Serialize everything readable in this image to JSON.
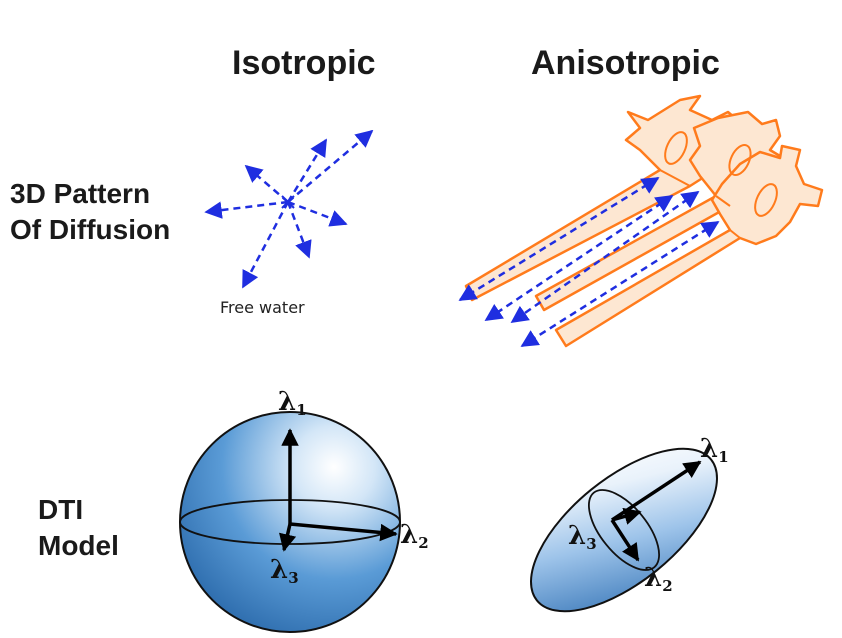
{
  "columns": {
    "isotropic": "Isotropic",
    "anisotropic": "Anisotropic"
  },
  "rows": {
    "pattern_line1": "3D Pattern",
    "pattern_line2": "Of Diffusion",
    "model_line1": "DTI",
    "model_line2": "Model"
  },
  "isotropic": {
    "caption": "Free water"
  },
  "sphere_axes": {
    "l1": "λ",
    "l1_sub": "1",
    "l2": "λ",
    "l2_sub": "2",
    "l3": "λ",
    "l3_sub": "3"
  },
  "ellipsoid_axes": {
    "l1": "λ",
    "l1_sub": "1",
    "l2": "λ",
    "l2_sub": "2",
    "l3": "λ",
    "l3_sub": "3"
  },
  "colors": {
    "arrow_blue": "#1f2ee0",
    "neuron_orange": "#ff7b1c",
    "neuron_fill": "#fde7d2",
    "sphere_blue": "#4a8fd0"
  }
}
